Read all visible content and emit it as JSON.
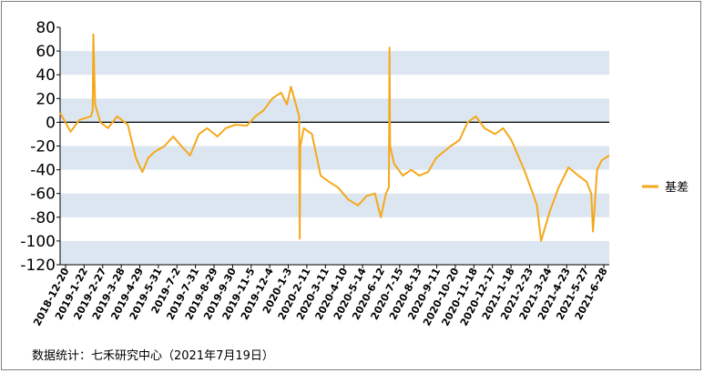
{
  "source_note": "数据统计：七禾研究中心（2021年7月19日）",
  "colors": {
    "series": "#f5a81b",
    "band": "#dce6f0",
    "axis": "#000000",
    "border": "#7f7f7f"
  },
  "chart_data": {
    "type": "line",
    "title": "",
    "xlabel": "",
    "ylabel": "",
    "ylim": [
      -120,
      80
    ],
    "yticks": [
      80,
      60,
      40,
      20,
      0,
      -20,
      -40,
      -60,
      -80,
      -100,
      -120
    ],
    "grid": "alternating horizontal bands",
    "legend": {
      "position": "right",
      "entries": [
        "基差"
      ]
    },
    "x_ticks": [
      "2018-12-20",
      "2019-1-22",
      "2019-2-27",
      "2019-3-28",
      "2019-4-29",
      "2019-5-31",
      "2019-7-2",
      "2019-7-31",
      "2019-8-29",
      "2019-9-30",
      "2019-11-5",
      "2019-12-4",
      "2020-1-3",
      "2020-2-11",
      "2020-3-11",
      "2020-4-10",
      "2020-5-14",
      "2020-6-12",
      "2020-7-15",
      "2020-8-13",
      "2020-9-11",
      "2020-10-20",
      "2020-11-18",
      "2020-12-17",
      "2021-1-18",
      "2021-2-23",
      "2021-3-24",
      "2021-4-23",
      "2021-5-27",
      "2021-6-28"
    ],
    "series": [
      {
        "name": "基差",
        "x": [
          "2018-12-20",
          "2019-1-7",
          "2019-1-22",
          "2019-2-11",
          "2019-2-14",
          "2019-2-15",
          "2019-2-18",
          "2019-2-27",
          "2019-3-12",
          "2019-3-28",
          "2019-4-15",
          "2019-4-29",
          "2019-5-10",
          "2019-5-20",
          "2019-5-31",
          "2019-6-17",
          "2019-7-2",
          "2019-7-16",
          "2019-7-31",
          "2019-8-15",
          "2019-8-29",
          "2019-9-16",
          "2019-9-30",
          "2019-10-17",
          "2019-11-5",
          "2019-11-20",
          "2019-12-4",
          "2019-12-19",
          "2020-1-3",
          "2020-1-13",
          "2020-1-20",
          "2020-2-3",
          "2020-2-4",
          "2020-2-5",
          "2020-2-11",
          "2020-2-25",
          "2020-3-11",
          "2020-3-25",
          "2020-4-10",
          "2020-4-27",
          "2020-5-14",
          "2020-5-29",
          "2020-6-12",
          "2020-6-22",
          "2020-7-1",
          "2020-7-6",
          "2020-7-7",
          "2020-7-8",
          "2020-7-15",
          "2020-7-30",
          "2020-8-13",
          "2020-8-27",
          "2020-9-11",
          "2020-9-25",
          "2020-10-20",
          "2020-11-4",
          "2020-11-18",
          "2020-12-2",
          "2020-12-17",
          "2021-1-4",
          "2021-1-18",
          "2021-2-1",
          "2021-2-23",
          "2021-3-10",
          "2021-3-17",
          "2021-3-24",
          "2021-4-8",
          "2021-4-23",
          "2021-5-10",
          "2021-5-27",
          "2021-6-10",
          "2021-6-18",
          "2021-6-21",
          "2021-6-28",
          "2021-7-6",
          "2021-7-19"
        ],
        "values": [
          8,
          -8,
          2,
          5,
          10,
          74,
          15,
          0,
          -5,
          5,
          -2,
          -30,
          -42,
          -30,
          -25,
          -20,
          -12,
          -20,
          -28,
          -10,
          -5,
          -12,
          -5,
          -2,
          -3,
          5,
          10,
          20,
          25,
          15,
          30,
          5,
          -98,
          -20,
          -5,
          -10,
          -45,
          -50,
          -55,
          -65,
          -70,
          -62,
          -60,
          -80,
          -60,
          -55,
          63,
          -20,
          -35,
          -45,
          -40,
          -45,
          -42,
          -30,
          -20,
          -15,
          0,
          5,
          -5,
          -10,
          -5,
          -15,
          -40,
          -60,
          -70,
          -100,
          -75,
          -55,
          -38,
          -45,
          -50,
          -60,
          -92,
          -40,
          -32,
          -28
        ]
      }
    ]
  }
}
